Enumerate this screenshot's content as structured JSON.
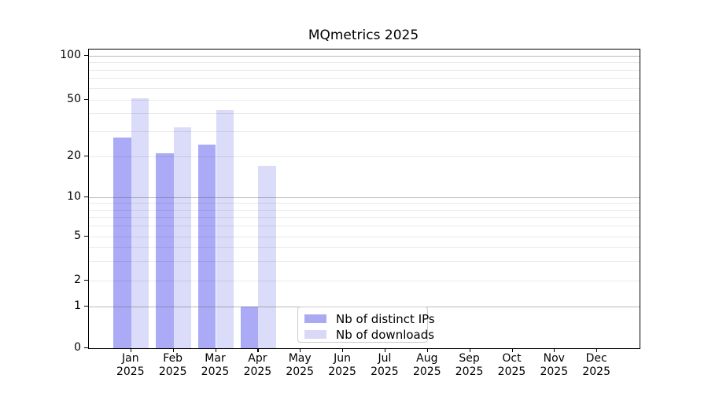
{
  "title": "MQmetrics 2025",
  "chart_data": {
    "type": "bar",
    "title": "MQmetrics 2025",
    "xlabel": "",
    "ylabel": "",
    "categories": [
      "Jan 2025",
      "Feb 2025",
      "Mar 2025",
      "Apr 2025",
      "May 2025",
      "Jun 2025",
      "Jul 2025",
      "Aug 2025",
      "Sep 2025",
      "Oct 2025",
      "Nov 2025",
      "Dec 2025"
    ],
    "series": [
      {
        "name": "Nb of distinct IPs",
        "color": "#aaaaf2",
        "values": [
          27,
          21,
          24,
          1,
          0,
          0,
          0,
          0,
          0,
          0,
          0,
          0
        ]
      },
      {
        "name": "Nb of downloads",
        "color": "#d9d9f7",
        "values": [
          51,
          32,
          42,
          17,
          0,
          0,
          0,
          0,
          0,
          0,
          0,
          0
        ]
      }
    ],
    "yscale": "asinh-like (log above 1, linear 0-1)",
    "ylim": [
      0,
      110
    ],
    "yticks": [
      0,
      1,
      2,
      5,
      10,
      20,
      50,
      100
    ],
    "major_gridline_values": [
      1,
      10,
      100
    ],
    "minor_gridline_values": [
      2,
      3,
      4,
      5,
      6,
      7,
      8,
      9,
      20,
      30,
      40,
      50,
      60,
      70,
      80,
      90
    ],
    "grid": true,
    "legend_position": "lower center",
    "colors": {
      "bar_distinct_ips": "#aaaaf7",
      "bar_downloads": "#dbdbfa",
      "major_grid": "#b4b4b4",
      "minor_grid": "#ebebeb",
      "axis": "#000000",
      "background": "#ffffff"
    }
  }
}
